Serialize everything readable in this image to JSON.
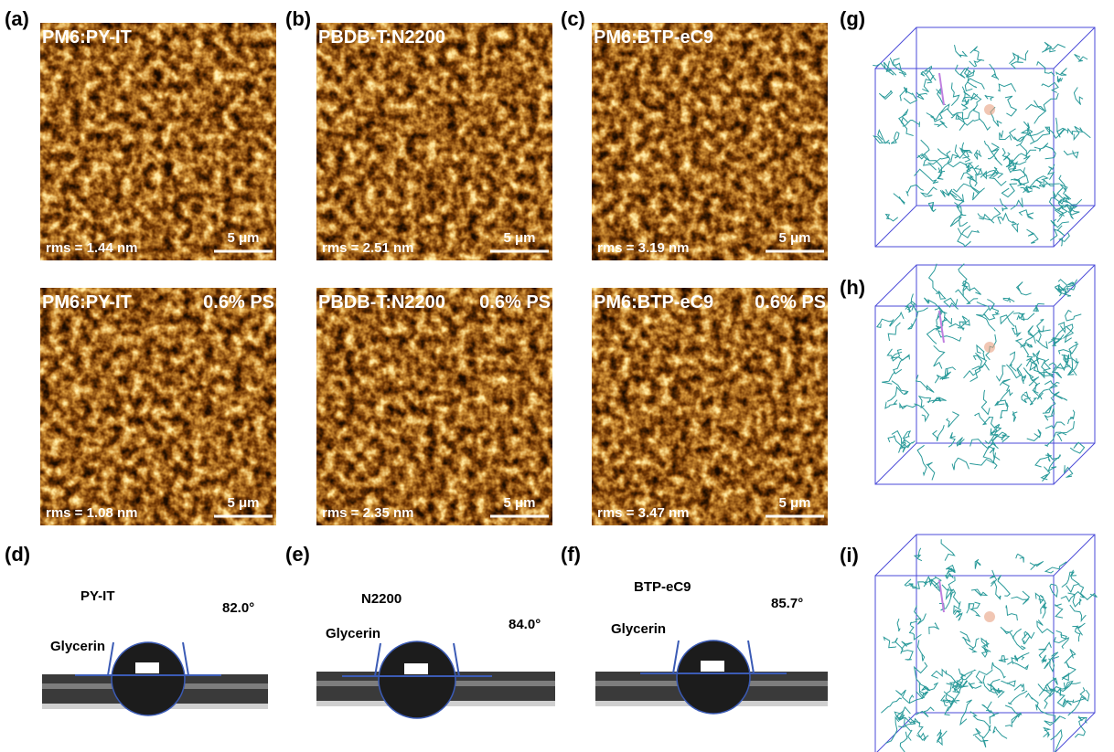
{
  "afm": [
    {
      "label": "(a)",
      "title": "PM6:PY-IT",
      "rms": "rms = 1.44 nm",
      "scale": "5 μm"
    },
    {
      "label": "(b)",
      "title": "PBDB-T:N2200",
      "rms": "rms = 2.51 nm",
      "scale": "5 μm"
    },
    {
      "label": "(c)",
      "title": "PM6:BTP-eC9",
      "rms": "rms = 3.19 nm",
      "scale": "5 μm"
    },
    {
      "title": "PM6:PY-IT",
      "tag": "0.6% PS",
      "rms": "rms = 1.08 nm",
      "scale": "5 μm"
    },
    {
      "title": "PBDB-T:N2200",
      "tag": "0.6% PS",
      "rms": "rms = 2.35 nm",
      "scale": "5 μm"
    },
    {
      "title": "PM6:BTP-eC9",
      "tag": "0.6% PS",
      "rms": "rms = 3.47 nm",
      "scale": "5 μm"
    }
  ],
  "contact_angle": [
    {
      "label": "(d)",
      "material": "PY-IT",
      "angle": "82.0°",
      "liquid": "Glycerin"
    },
    {
      "label": "(e)",
      "material": "N2200",
      "angle": "84.0°",
      "liquid": "Glycerin"
    },
    {
      "label": "(f)",
      "material": "BTP-eC9",
      "angle": "85.7°",
      "liquid": "Glycerin"
    }
  ],
  "md": [
    {
      "label": "(g)"
    },
    {
      "label": "(h)"
    },
    {
      "label": "(i)"
    }
  ]
}
